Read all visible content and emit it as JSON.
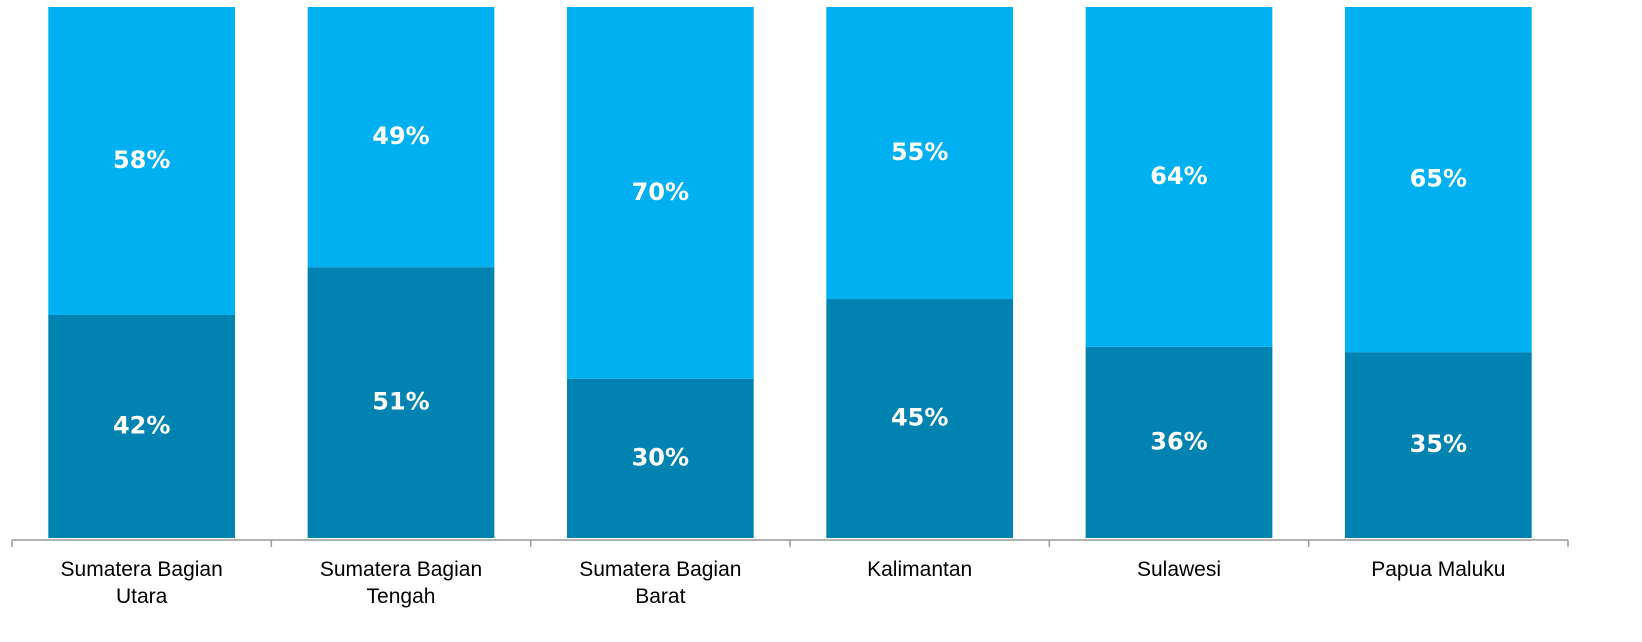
{
  "chart_data": {
    "type": "stacked_bar",
    "categories": [
      "Sumatera Bagian Utara",
      "Sumatera Bagian Tengah",
      "Sumatera Bagian Barat",
      "Kalimantan",
      "Sulawesi",
      "Papua Maluku"
    ],
    "series": [
      {
        "color": "#0083b0",
        "values": [
          42,
          51,
          30,
          45,
          36,
          35
        ],
        "value_labels": [
          "42%",
          "51%",
          "30%",
          "45%",
          "36%",
          "35%"
        ]
      },
      {
        "color": "#00b0f0",
        "values": [
          58,
          49,
          70,
          55,
          64,
          65
        ],
        "value_labels": [
          "58%",
          "49%",
          "70%",
          "55%",
          "64%",
          "65%"
        ]
      }
    ],
    "ylim": [
      0,
      100
    ]
  }
}
